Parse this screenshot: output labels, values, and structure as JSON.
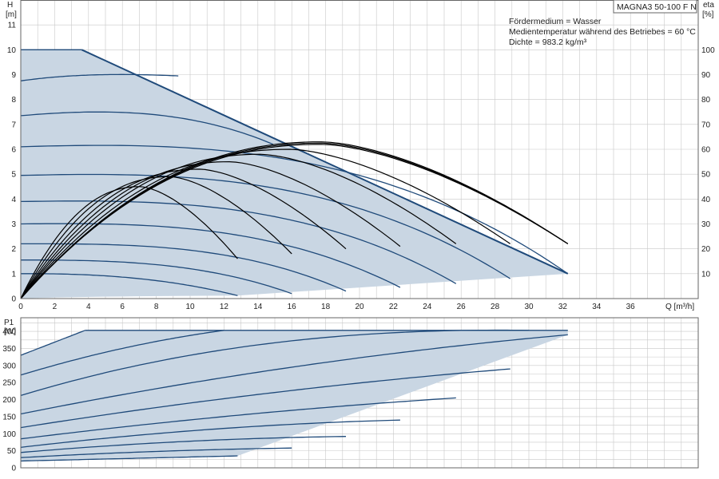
{
  "model_label": "MAGNA3 50-100 F N",
  "info_lines": [
    "Fördermedium = Wasser",
    "Medientemperatur während des Betriebes = 60 °C",
    "Dichte = 983.2 kg/m³"
  ],
  "colors": {
    "area_fill": "#c9d6e3",
    "curve": "#1f4a7a",
    "efficiency": "#000000",
    "grid": "#c8c8c8",
    "frame": "#666666"
  },
  "chart_data": [
    {
      "type": "line",
      "name": "head",
      "ylabel": "H",
      "yunit": "[m]",
      "y2label": "eta",
      "y2unit": "[%]",
      "xlabel": "Q [m³/h]",
      "xlim": [
        0,
        40
      ],
      "ylim": [
        0,
        12
      ],
      "y2lim": [
        0,
        120
      ],
      "xticks": [
        0,
        2,
        4,
        6,
        8,
        10,
        12,
        14,
        16,
        18,
        20,
        22,
        24,
        26,
        28,
        30,
        32,
        34,
        36
      ],
      "yticks": [
        0,
        1,
        2,
        3,
        4,
        5,
        6,
        7,
        8,
        9,
        10,
        11
      ],
      "y2ticks": [
        10,
        20,
        30,
        40,
        50,
        60,
        70,
        80,
        90,
        100
      ],
      "grid": true,
      "envelope": {
        "x": [
          0,
          3.6,
          32.3,
          32.3,
          12.8,
          0
        ],
        "y": [
          10,
          10,
          1.0,
          1.0,
          0.12,
          0
        ]
      },
      "speed_curves": [
        {
          "x": [
            0,
            4,
            7,
            12.8
          ],
          "y": [
            1.0,
            0.95,
            0.8,
            0.12
          ]
        },
        {
          "x": [
            0,
            5,
            10,
            16
          ],
          "y": [
            1.55,
            1.5,
            1.2,
            0.2
          ]
        },
        {
          "x": [
            0,
            6,
            12,
            19.2
          ],
          "y": [
            2.2,
            2.15,
            1.75,
            0.3
          ]
        },
        {
          "x": [
            0,
            7,
            14,
            22.4
          ],
          "y": [
            3.0,
            2.95,
            2.4,
            0.45
          ]
        },
        {
          "x": [
            0,
            8,
            16,
            25.7
          ],
          "y": [
            3.9,
            3.85,
            3.15,
            0.6
          ]
        },
        {
          "x": [
            0,
            9,
            18,
            28.9
          ],
          "y": [
            4.95,
            4.9,
            4.0,
            0.8
          ]
        },
        {
          "x": [
            0,
            10,
            20,
            32.3
          ],
          "y": [
            6.1,
            6.05,
            4.95,
            1.0
          ]
        },
        {
          "x": [
            0,
            4.5,
            9,
            14.9
          ],
          "y": [
            7.35,
            7.5,
            7.3,
            6.2
          ]
        },
        {
          "x": [
            0,
            3,
            5,
            9.3
          ],
          "y": [
            8.75,
            8.95,
            9.0,
            8.95
          ]
        },
        {
          "x": [
            0,
            3.6
          ],
          "y": [
            10,
            10
          ]
        }
      ],
      "efficiency_curves": [
        {
          "qmax": 12.8,
          "etamax": 45,
          "etaend": 16
        },
        {
          "qmax": 16.0,
          "etamax": 49,
          "etaend": 18
        },
        {
          "qmax": 19.2,
          "etamax": 52,
          "etaend": 20
        },
        {
          "qmax": 22.4,
          "etamax": 55,
          "etaend": 21
        },
        {
          "qmax": 25.7,
          "etamax": 58,
          "etaend": 22
        },
        {
          "qmax": 28.9,
          "etamax": 60,
          "etaend": 22
        },
        {
          "qmax": 32.3,
          "etamax": 62,
          "etaend": 22
        },
        {
          "qmax": 32.3,
          "etamax": 62.5,
          "etaend": 22
        },
        {
          "qmax": 32.3,
          "etamax": 63,
          "etaend": 22
        }
      ]
    },
    {
      "type": "line",
      "name": "power",
      "ylabel": "P1",
      "yunit": "[W]",
      "xlim": [
        0,
        40
      ],
      "ylim": [
        0,
        440
      ],
      "yticks": [
        0,
        50,
        100,
        150,
        200,
        250,
        300,
        350,
        400
      ],
      "grid": true,
      "envelope": {
        "x": [
          0,
          3.8,
          32.3,
          32.3,
          12.8,
          0
        ],
        "y": [
          330,
          403,
          403,
          390,
          35,
          20
        ]
      },
      "power_curves": [
        {
          "x": [
            0,
            6,
            12.8
          ],
          "y": [
            20,
            27,
            35
          ]
        },
        {
          "x": [
            0,
            8,
            16
          ],
          "y": [
            30,
            48,
            58
          ]
        },
        {
          "x": [
            0,
            10,
            19.2
          ],
          "y": [
            45,
            78,
            92
          ]
        },
        {
          "x": [
            0,
            11,
            22.4
          ],
          "y": [
            60,
            112,
            140
          ]
        },
        {
          "x": [
            0,
            13,
            25.7
          ],
          "y": [
            85,
            155,
            205
          ]
        },
        {
          "x": [
            0,
            14,
            28.9
          ],
          "y": [
            118,
            215,
            290
          ]
        },
        {
          "x": [
            0,
            16,
            32.3
          ],
          "y": [
            158,
            295,
            390
          ]
        },
        {
          "x": [
            0,
            10,
            20,
            30
          ],
          "y": [
            212,
            330,
            390,
            403
          ]
        },
        {
          "x": [
            0,
            6,
            12
          ],
          "y": [
            272,
            350,
            403
          ]
        },
        {
          "x": [
            0,
            3.8
          ],
          "y": [
            330,
            403
          ]
        },
        {
          "x": [
            3.8,
            32.3
          ],
          "y": [
            403,
            403
          ]
        }
      ]
    }
  ]
}
